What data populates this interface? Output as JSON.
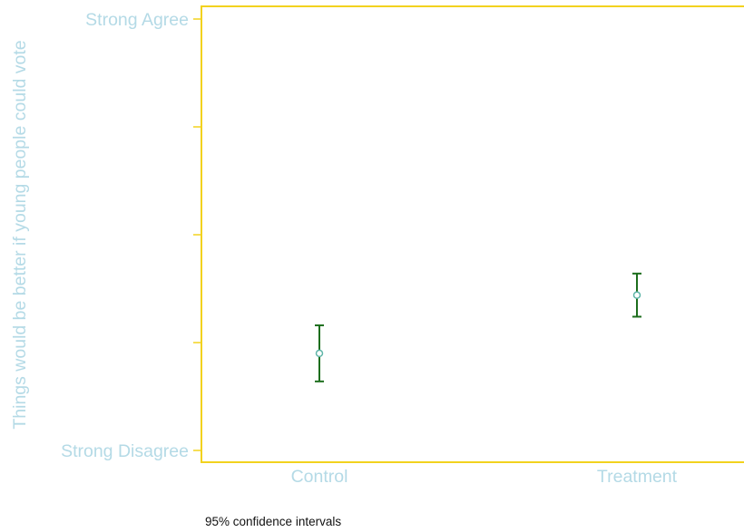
{
  "chart_data": {
    "type": "scatter",
    "title": "",
    "xlabel": "",
    "ylabel": "Things would be better if young people could vote",
    "categories": [
      "Control",
      "Treatment"
    ],
    "y_tick_values": [
      1,
      2,
      3,
      4,
      5
    ],
    "y_tick_labels": [
      {
        "value": 1,
        "label": "Strong Disagree"
      },
      {
        "value": 5,
        "label": "Strong Agree"
      }
    ],
    "ylim": [
      1,
      5
    ],
    "series": [
      {
        "points": [
          {
            "category": "Control",
            "mean": 1.9,
            "ci_low": 1.64,
            "ci_high": 2.16
          },
          {
            "category": "Treatment",
            "mean": 2.44,
            "ci_low": 2.24,
            "ci_high": 2.64
          }
        ]
      }
    ],
    "grid": false,
    "colors": {
      "axis": "#f2d21e",
      "label": "#b4dae6",
      "error_bar": "#1d6e1d",
      "marker": "#5fb5a8"
    }
  },
  "note": "95% confidence intervals"
}
